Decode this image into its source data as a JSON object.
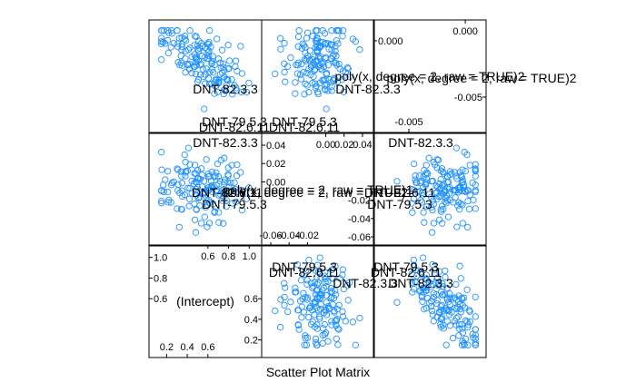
{
  "chart_data": {
    "type": "scatter",
    "title": "",
    "xlabel": "Scatter Plot Matrix",
    "colors": {
      "points": "#1e90ff",
      "frame": "#000000",
      "background": "#ffffff"
    },
    "variables": [
      {
        "name": "(Intercept)",
        "range": [
          0.1,
          1.05
        ],
        "ticks_low": [
          "0.2",
          "0.4",
          "0.6"
        ],
        "ticks_high": [
          "0.6",
          "0.8",
          "1.0"
        ],
        "ticks_low_vals": [
          0.2,
          0.4,
          0.6
        ],
        "ticks_high_vals": [
          0.6,
          0.8,
          1.0
        ]
      },
      {
        "name": "poly(x, degree = 2, raw = TRUE)1",
        "range": [
          -0.062,
          0.045
        ],
        "ticks_low": [
          "-0.06",
          "-0.04",
          "-0.02"
        ],
        "ticks_high": [
          "0.00",
          "0.02",
          "0.04"
        ],
        "ticks_low_vals": [
          -0.06,
          -0.04,
          -0.02
        ],
        "ticks_high_vals": [
          0.0,
          0.02,
          0.04
        ]
      },
      {
        "name": "poly(x, degree = 2, raw = TRUE)2",
        "range": [
          -0.0075,
          0.0012
        ],
        "ticks_low": [
          "-0.005"
        ],
        "ticks_high": [
          "0.000"
        ],
        "ticks_low_vals": [
          -0.005
        ],
        "ticks_high_vals": [
          0.0
        ]
      }
    ],
    "overlap_labels": {
      "panel_0_0": [
        "DNT-82.3.3"
      ],
      "panel_0_1": [
        "DNT-82.3.3"
      ],
      "panel_0_2": [
        "poly(x, degree = 2, raw = TRUE)2"
      ],
      "panel_1_0": [
        "DNT-79.5.3",
        "DNT-82.6.11",
        "DNT-82.3.3"
      ],
      "panel_1_1": [
        "DNT-79.5.3",
        "DNT-82.6.11"
      ],
      "panel_1_2": [
        "DNT-82.3.3"
      ],
      "panel_2_0": [
        "DNT-82.6.11",
        "DNT-79.5.3"
      ],
      "panel_2_1": [
        "poly(x, degree = 2, raw = TRUE)1"
      ],
      "panel_2_2": [
        "DNT-82.6.11",
        "DNT-79.5.3"
      ],
      "panel_3_1": [
        "DNT-79.5.3",
        "DNT-82.6.11",
        "DNT-82.3.3"
      ],
      "panel_3_2": [
        "DNT-79.5.3",
        "DNT-82.6.11",
        "DNT-82.3.3"
      ]
    },
    "grid": false,
    "legend": "none"
  }
}
